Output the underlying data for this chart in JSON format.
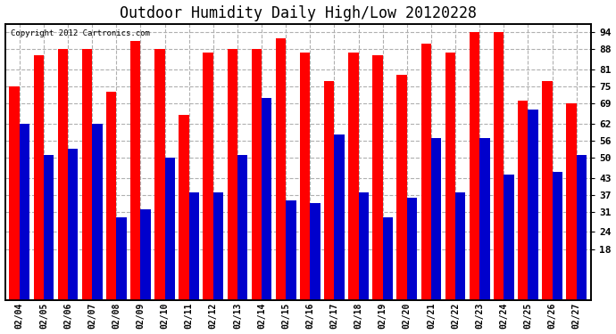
{
  "title": "Outdoor Humidity Daily High/Low 20120228",
  "copyright": "Copyright 2012 Cartronics.com",
  "dates": [
    "02/04",
    "02/05",
    "02/06",
    "02/07",
    "02/08",
    "02/09",
    "02/10",
    "02/11",
    "02/12",
    "02/13",
    "02/14",
    "02/15",
    "02/16",
    "02/17",
    "02/18",
    "02/19",
    "02/20",
    "02/21",
    "02/22",
    "02/23",
    "02/24",
    "02/25",
    "02/26",
    "02/27"
  ],
  "highs": [
    75,
    86,
    88,
    88,
    73,
    91,
    88,
    65,
    87,
    88,
    88,
    92,
    87,
    77,
    87,
    86,
    79,
    90,
    87,
    94,
    94,
    70,
    77,
    69
  ],
  "lows": [
    62,
    51,
    53,
    62,
    29,
    32,
    50,
    38,
    38,
    51,
    71,
    35,
    34,
    58,
    38,
    29,
    36,
    57,
    38,
    57,
    44,
    67,
    45,
    51
  ],
  "high_color": "#ff0000",
  "low_color": "#0000cc",
  "background_color": "#ffffff",
  "grid_color": "#b0b0b0",
  "yticks": [
    18,
    24,
    31,
    37,
    43,
    50,
    56,
    62,
    69,
    75,
    81,
    88,
    94
  ],
  "ymin": 18,
  "ymax": 97,
  "title_fontsize": 12
}
